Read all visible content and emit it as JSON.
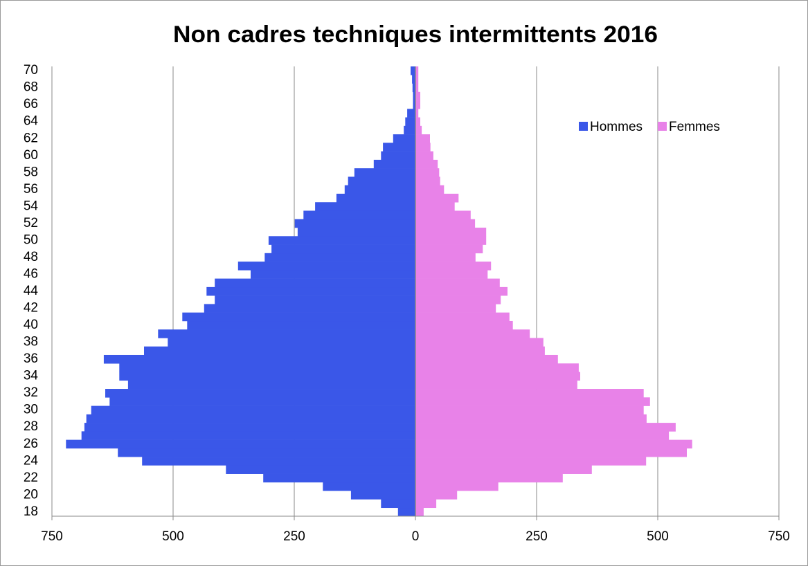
{
  "chart_data": {
    "type": "pyramid",
    "title": "Non cadres techniques intermittents 2016",
    "categories": [
      "18",
      null,
      "20",
      null,
      "22",
      null,
      "24",
      null,
      "26",
      null,
      "28",
      null,
      "30",
      null,
      "32",
      null,
      "34",
      null,
      "36",
      null,
      "38",
      null,
      "40",
      null,
      "42",
      null,
      "44",
      null,
      "46",
      null,
      "48",
      null,
      "50",
      null,
      "52",
      null,
      "54",
      null,
      "56",
      null,
      "58",
      null,
      "60",
      null,
      "62",
      null,
      "64",
      null,
      "66",
      null,
      "68",
      null,
      "70"
    ],
    "series": [
      {
        "name": "Hommes",
        "color": "#3a57e8",
        "values": [
          -36,
          -71,
          -133,
          -191,
          -314,
          -391,
          -564,
          -614,
          -721,
          -689,
          -683,
          -679,
          -669,
          -631,
          -640,
          -593,
          -611,
          -611,
          -643,
          -560,
          -511,
          -531,
          -471,
          -481,
          -436,
          -414,
          -431,
          -414,
          -340,
          -366,
          -311,
          -297,
          -303,
          -243,
          -249,
          -231,
          -207,
          -163,
          -146,
          -139,
          -126,
          -86,
          -71,
          -67,
          -46,
          -24,
          -21,
          -17,
          -5,
          -5,
          -6,
          -7,
          -10
        ]
      },
      {
        "name": "Femmes",
        "color": "#e882e8",
        "values": [
          17,
          43,
          86,
          171,
          304,
          364,
          476,
          560,
          571,
          523,
          537,
          477,
          471,
          484,
          471,
          334,
          340,
          337,
          294,
          267,
          264,
          236,
          201,
          194,
          166,
          176,
          190,
          174,
          149,
          156,
          124,
          139,
          146,
          146,
          123,
          114,
          81,
          89,
          59,
          51,
          49,
          46,
          37,
          31,
          30,
          13,
          10,
          6,
          10,
          10,
          6,
          6,
          6
        ]
      }
    ],
    "xlim": [
      -750,
      750
    ],
    "xticks": [
      {
        "value": -750,
        "label": "750"
      },
      {
        "value": -500,
        "label": "500"
      },
      {
        "value": -250,
        "label": "250"
      },
      0,
      250,
      500,
      750
    ],
    "grid": true,
    "legend": "upper right"
  }
}
